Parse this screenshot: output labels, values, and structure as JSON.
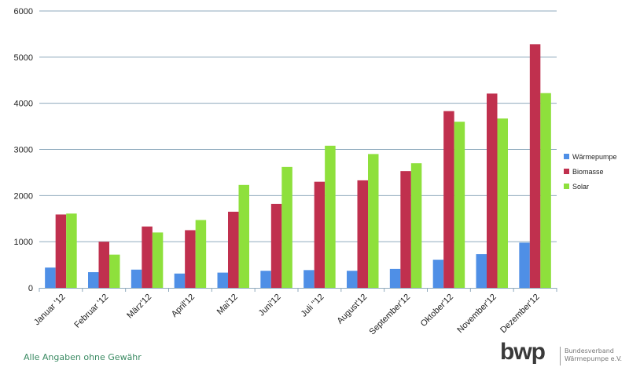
{
  "colors": {
    "background": "#ffffff",
    "grid": "#8faabd",
    "axis_text": "#222222",
    "footer_text": "#3a8a62",
    "logo_text": "#777777"
  },
  "chart_data": {
    "type": "bar",
    "title": "",
    "xlabel": "",
    "ylabel": "",
    "ylim": [
      0,
      6000
    ],
    "yticks": [
      0,
      1000,
      2000,
      3000,
      4000,
      5000,
      6000
    ],
    "grid": true,
    "legend_position": "right",
    "categories": [
      "Januar '12",
      "Februar '12",
      "März'12",
      "April'12",
      "Mai'12",
      "Juni'12",
      "Juli ''12",
      "August'12",
      "September'12",
      "Oktober'12",
      "November'12",
      "Dezember'12"
    ],
    "series": [
      {
        "name": "Wärmepumpe",
        "color": "#4f8fe6",
        "values": [
          440,
          340,
          395,
          310,
          330,
          370,
          385,
          370,
          410,
          610,
          730,
          980
        ]
      },
      {
        "name": "Biomasse",
        "color": "#c0304e",
        "values": [
          1590,
          1000,
          1330,
          1250,
          1650,
          1820,
          2300,
          2330,
          2530,
          3830,
          4210,
          5280
        ]
      },
      {
        "name": "Solar",
        "color": "#8ee03c",
        "values": [
          1610,
          720,
          1200,
          1470,
          2230,
          2620,
          3080,
          2900,
          2700,
          3600,
          3670,
          4220
        ]
      }
    ]
  },
  "footer": {
    "note": "Alle Angaben ohne Gewähr"
  },
  "logo": {
    "mark": "bwp",
    "line1": "Bundesverband",
    "line2": "Wärmepumpe e.V."
  }
}
